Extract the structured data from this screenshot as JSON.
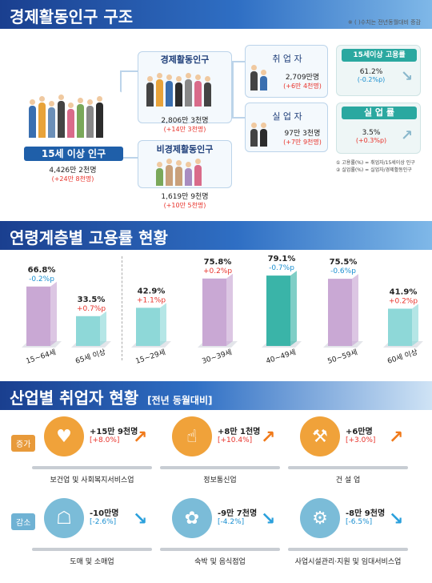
{
  "section1": {
    "title": "경제활동인구 구조",
    "note": "※ ( )수치는 전년동월대비 증감",
    "pop15": {
      "label": "15세 이상 인구",
      "value": "4,426만 2천명",
      "change": "(+24만 8천명)"
    },
    "active": {
      "label": "경제활동인구",
      "value": "2,806만 3천명",
      "change": "(+14만 3천명)"
    },
    "inactive": {
      "label": "비경제활동인구",
      "value": "1,619만 9천명",
      "change": "(+10만 5천명)"
    },
    "employed": {
      "label": "취 업 자",
      "value": "2,709만명",
      "change": "(+6만 4천명)"
    },
    "unemployed": {
      "label": "실 업 자",
      "value": "97만 3천명",
      "change": "(+7만 9천명)"
    },
    "emp_rate": {
      "label": "15세이상 고용률",
      "value": "61.2%",
      "change": "(-0.2%p)"
    },
    "unemp_rate": {
      "label": "실 업 률",
      "value": "3.5%",
      "change": "(+0.3%p)"
    },
    "formula1": "① 고용률(%) = 취업자/15세이상 인구",
    "formula2": "② 실업률(%) = 실업자/경제활동인구"
  },
  "section2": {
    "title": "연령계층별 고용률 현황"
  },
  "chart_data": {
    "type": "bar",
    "title": "연령계층별 고용률 현황",
    "unit": "%",
    "categories": [
      "15~64세",
      "65세 이상",
      "15~29세",
      "30~39세",
      "40~49세",
      "50~59세",
      "60세 이상"
    ],
    "values": [
      66.8,
      33.5,
      42.9,
      75.8,
      79.1,
      75.5,
      41.9
    ],
    "value_labels": [
      "66.8%",
      "33.5%",
      "42.9%",
      "75.8%",
      "79.1%",
      "75.5%",
      "41.9%"
    ],
    "changes": [
      "-0.2%p",
      "+0.7%p",
      "+1.1%p",
      "+0.2%p",
      "-0.7%p",
      "-0.6%p",
      "+0.2%p"
    ],
    "colors": [
      "#c9a8d4",
      "#8ed8d8",
      "#8ed8d8",
      "#c9a8d4",
      "#3ab4a8",
      "#c9a8d4",
      "#8ed8d8"
    ],
    "ylim": [
      0,
      90
    ]
  },
  "section3": {
    "title": "산업별 취업자 현황",
    "subtitle": "[전년 동월대비]",
    "increase_tag": "증가",
    "decrease_tag": "감소",
    "increase": [
      {
        "name": "보건업 및 사회복지서비스업",
        "value": "+15만 9천명",
        "pct": "[+8.0%]",
        "icon": "heart-care-icon"
      },
      {
        "name": "정보통신업",
        "value": "+8만 1천명",
        "pct": "[+10.4%]",
        "icon": "touch-device-icon"
      },
      {
        "name": "건 설 업",
        "value": "+6만명",
        "pct": "[+3.0%]",
        "icon": "crane-icon"
      }
    ],
    "decrease": [
      {
        "name": "도매 및 소매업",
        "value": "-10만명",
        "pct": "[-2.6%]",
        "icon": "sale-tag-icon"
      },
      {
        "name": "숙박 및 음식점업",
        "value": "-9만 7천명",
        "pct": "[-4.2%]",
        "icon": "hotel-service-icon"
      },
      {
        "name": "사업시설관리·지원 및 임대서비스업",
        "value": "-8만 9천명",
        "pct": "[-6.5%]",
        "icon": "facility-tools-icon"
      }
    ],
    "inc_color": "#f0a23a",
    "dec_color": "#7bbcd8"
  }
}
